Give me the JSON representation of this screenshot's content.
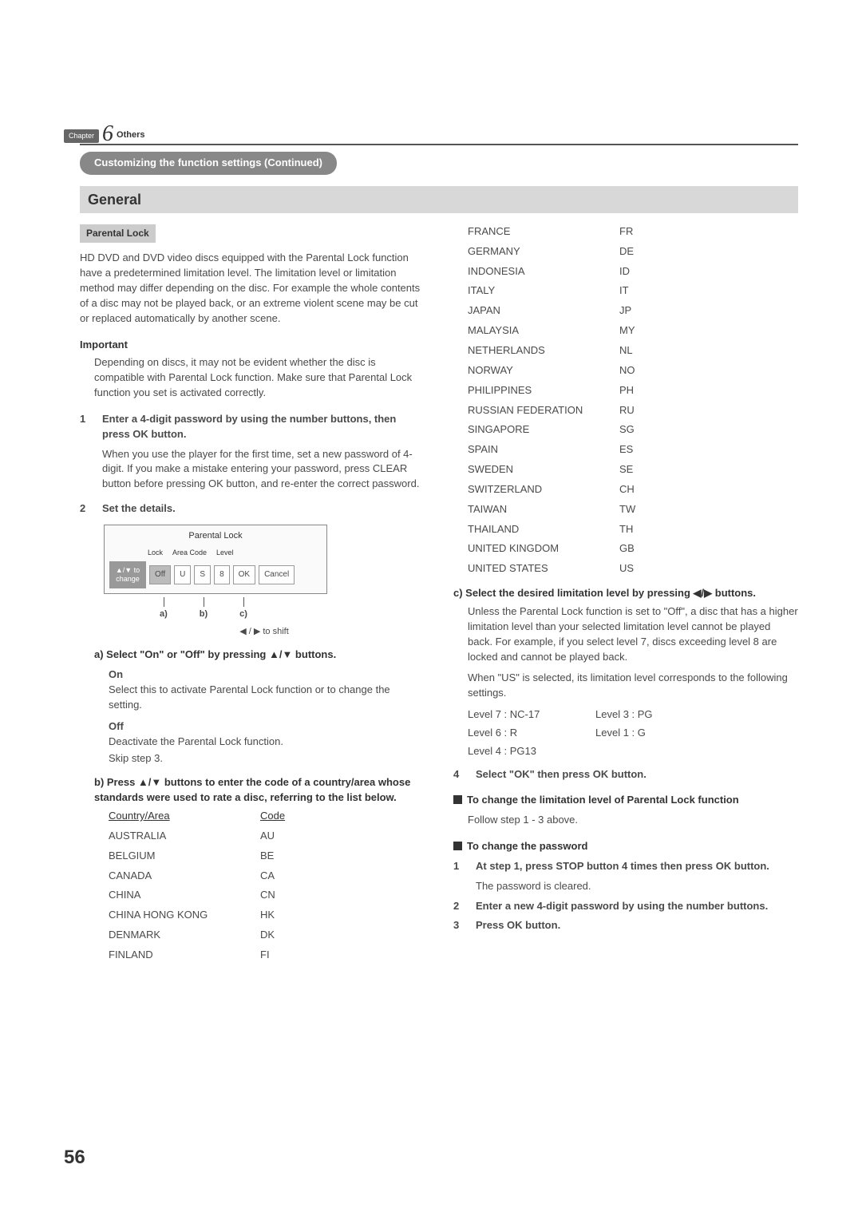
{
  "chapter": {
    "label": "Chapter",
    "number": "6",
    "topic": "Others"
  },
  "pill": "Customizing the function settings (Continued)",
  "section": "General",
  "setting": "Parental Lock",
  "intro": "HD DVD and DVD video discs equipped with the Parental Lock function have a predetermined limitation level. The limitation level or limitation method may differ depending on the disc. For example the whole contents of a disc may not be played back, or an extreme violent scene may be cut or replaced automatically by another scene.",
  "important": {
    "title": "Important",
    "body": "Depending on discs, it may not be evident whether the disc is compatible with Parental Lock function. Make sure that Parental Lock function you set is activated correctly."
  },
  "step1": {
    "num": "1",
    "title": "Enter a 4-digit password by using the number buttons, then press OK button.",
    "body": "When you use the player for the first time, set a new password of 4-digit. If you make a mistake entering your password, press CLEAR button before pressing OK button, and re-enter the correct password."
  },
  "step2": {
    "num": "2",
    "title": "Set the details."
  },
  "diagram": {
    "title": "Parental Lock",
    "headers": [
      "Lock",
      "Area Code",
      "Level"
    ],
    "side": "▲/▼ to change",
    "cells": {
      "off": "Off",
      "u": "U",
      "s": "S",
      "eight": "8",
      "ok": "OK",
      "cancel": "Cancel"
    },
    "pointers": {
      "a": "a)",
      "b": "b)",
      "c": "c)"
    },
    "shift": "◀ / ▶ to shift"
  },
  "subA": {
    "title": "a) Select \"On\" or \"Off\" by pressing ▲/▼ buttons.",
    "on": {
      "name": "On",
      "desc": "Select this to activate Parental Lock function or to change the setting."
    },
    "off": {
      "name": "Off",
      "desc1": "Deactivate the Parental Lock function.",
      "desc2": "Skip step 3."
    }
  },
  "subB": {
    "title": "b) Press ▲/▼ buttons to enter the code of a country/area whose standards were used to rate a disc, referring to the list below.",
    "header": {
      "country": "Country/Area",
      "code": "Code"
    },
    "rows1": [
      {
        "c": "AUSTRALIA",
        "code": "AU"
      },
      {
        "c": "BELGIUM",
        "code": "BE"
      },
      {
        "c": "CANADA",
        "code": "CA"
      },
      {
        "c": "CHINA",
        "code": "CN"
      },
      {
        "c": "CHINA HONG KONG",
        "code": "HK"
      },
      {
        "c": "DENMARK",
        "code": "DK"
      },
      {
        "c": "FINLAND",
        "code": "FI"
      }
    ],
    "rows2": [
      {
        "c": "FRANCE",
        "code": "FR"
      },
      {
        "c": "GERMANY",
        "code": "DE"
      },
      {
        "c": "INDONESIA",
        "code": "ID"
      },
      {
        "c": "ITALY",
        "code": "IT"
      },
      {
        "c": "JAPAN",
        "code": "JP"
      },
      {
        "c": "MALAYSIA",
        "code": "MY"
      },
      {
        "c": "NETHERLANDS",
        "code": "NL"
      },
      {
        "c": "NORWAY",
        "code": "NO"
      },
      {
        "c": "PHILIPPINES",
        "code": "PH"
      },
      {
        "c": "RUSSIAN FEDERATION",
        "code": "RU"
      },
      {
        "c": "SINGAPORE",
        "code": "SG"
      },
      {
        "c": "SPAIN",
        "code": "ES"
      },
      {
        "c": "SWEDEN",
        "code": "SE"
      },
      {
        "c": "SWITZERLAND",
        "code": "CH"
      },
      {
        "c": "TAIWAN",
        "code": "TW"
      },
      {
        "c": "THAILAND",
        "code": "TH"
      },
      {
        "c": "UNITED KINGDOM",
        "code": "GB"
      },
      {
        "c": "UNITED STATES",
        "code": "US"
      }
    ]
  },
  "subC": {
    "title": "c) Select the desired limitation level by pressing ◀/▶ buttons.",
    "body1": "Unless the Parental Lock function is set to \"Off\", a disc that has a higher limitation level than your selected limitation level cannot be played back. For example, if you select level 7, discs exceeding level 8 are locked and cannot be played back.",
    "body2": "When \"US\" is selected, its limitation level corresponds to the following settings.",
    "levels": [
      {
        "l": "Level 7 : NC-17",
        "r": "Level 3 : PG"
      },
      {
        "l": "Level 6 : R",
        "r": "Level 1 : G"
      },
      {
        "l": "Level 4 : PG13",
        "r": ""
      }
    ]
  },
  "step4": {
    "num": "4",
    "title": "Select \"OK\" then press OK button."
  },
  "changeLevel": {
    "title": "To change the limitation level of Parental Lock function",
    "body": "Follow step 1 - 3 above."
  },
  "changePw": {
    "title": "To change the password",
    "s1": {
      "num": "1",
      "title": "At step 1, press STOP button 4 times then press OK button.",
      "body": "The password is cleared."
    },
    "s2": {
      "num": "2",
      "title": "Enter a new 4-digit password by using the number buttons."
    },
    "s3": {
      "num": "3",
      "title": "Press OK button."
    }
  },
  "pageNumber": "56"
}
